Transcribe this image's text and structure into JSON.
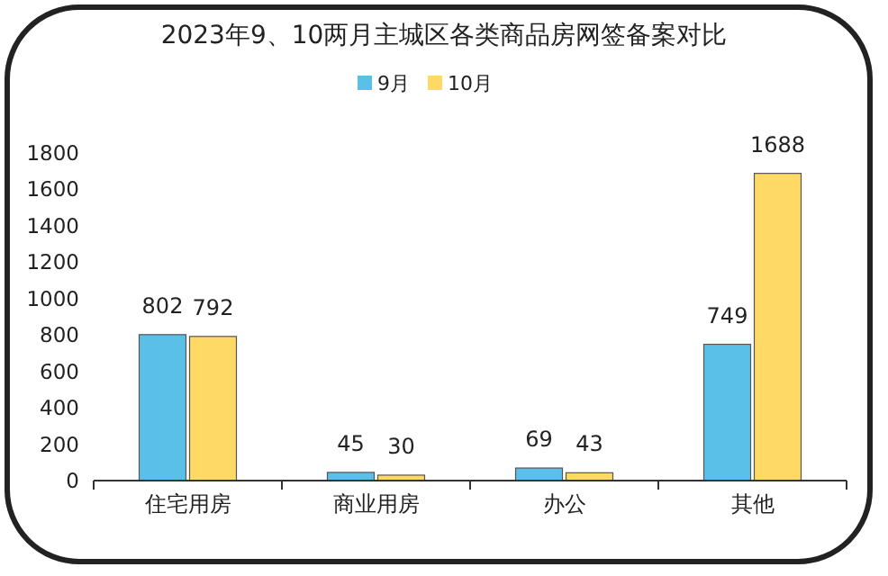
{
  "chart_data": {
    "type": "bar",
    "title": "2023年9、10两月主城区各类商品房网签备案对比",
    "categories": [
      "住宅用房",
      "商业用房",
      "办公",
      "其他"
    ],
    "series": [
      {
        "name": "9月",
        "color": "#5bc0e8",
        "values": [
          802,
          45,
          69,
          749
        ]
      },
      {
        "name": "10月",
        "color": "#ffd966",
        "values": [
          792,
          30,
          43,
          1688
        ]
      }
    ],
    "ylim": [
      0,
      1800
    ],
    "yticks": [
      0,
      200,
      400,
      600,
      800,
      1000,
      1200,
      1400,
      1600,
      1800
    ],
    "data_labels": true,
    "legend": "top"
  }
}
